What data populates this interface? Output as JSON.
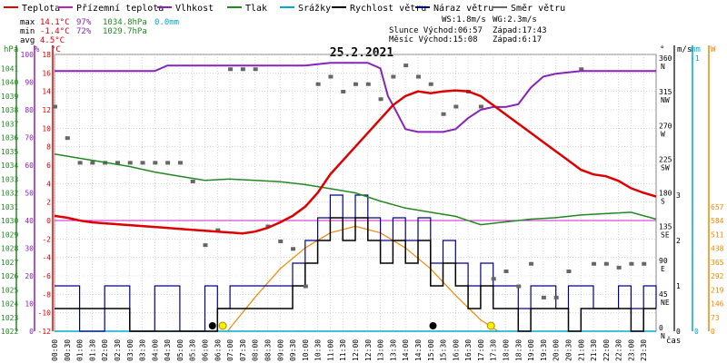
{
  "legend": [
    {
      "label": "Teplota",
      "color": "#dd0000"
    },
    {
      "label": "Přízemní teplota",
      "color": "#bb22bb"
    },
    {
      "label": "Vlhkost",
      "color": "#8822bb"
    },
    {
      "label": "Tlak",
      "color": "#228822"
    },
    {
      "label": "Srážky",
      "color": "#00aacc"
    },
    {
      "label": "Rychlost větru",
      "color": "#000000"
    },
    {
      "label": "Náraz větru",
      "color": "#000088"
    },
    {
      "label": "Směr větru",
      "color": "#666666"
    }
  ],
  "stats": {
    "max": {
      "label": "max",
      "temp": "14.1°C",
      "hum": "97%",
      "press": "1034.8hPa",
      "rain": "0.0mm"
    },
    "min": {
      "label": "min",
      "temp": "-1.4°C",
      "hum": "72%",
      "press": "1029.7hPa"
    },
    "avg": {
      "label": "avg",
      "temp": "4.5°C"
    }
  },
  "wind_info": {
    "ws": "WS:1.8m/s",
    "wg": "WG:2.3m/s"
  },
  "sun": {
    "rise": "Slunce Východ:06:57",
    "set": "Západ:17:43"
  },
  "moon": {
    "rise": "Měsíc Východ:15:08",
    "set": "Západ:6:17"
  },
  "date": "25.2.2021",
  "colors": {
    "temp": "#dd0000",
    "humidity": "#8822bb",
    "pressure": "#228822",
    "rain": "#00aacc",
    "wind": "#000000",
    "gust": "#000088",
    "dir": "#666666",
    "sun": "#ee8800",
    "zero": "#cc22cc"
  },
  "chart_data": {
    "type": "line",
    "title": "25.2.2021",
    "xlabel": "čas",
    "x_ticks": [
      "00:00",
      "00:30",
      "01:00",
      "01:30",
      "02:00",
      "02:30",
      "03:00",
      "03:30",
      "04:00",
      "04:30",
      "05:00",
      "05:30",
      "06:00",
      "06:30",
      "07:00",
      "07:30",
      "08:00",
      "08:30",
      "09:00",
      "09:30",
      "10:00",
      "10:30",
      "11:00",
      "11:30",
      "12:00",
      "12:30",
      "13:00",
      "13:30",
      "14:00",
      "14:30",
      "15:00",
      "15:30",
      "16:00",
      "16:30",
      "17:00",
      "17:30",
      "18:00",
      "18:30",
      "19:00",
      "19:30",
      "20:00",
      "20:30",
      "21:00",
      "21:30",
      "22:00",
      "22:30",
      "23:00",
      "23:30"
    ],
    "axes": {
      "pressure": {
        "unit": "hPa",
        "range": [
          1022,
          1042
        ],
        "ticks": [
          "1022",
          "1023",
          "1024",
          "1025",
          "1026",
          "1027",
          "1028",
          "1029",
          "1030",
          "1031",
          "1032",
          "1033",
          "1034",
          "1035",
          "1036",
          "1037",
          "1038",
          "1039",
          "1040",
          "1041"
        ]
      },
      "humidity": {
        "unit": "%",
        "range": [
          0,
          100
        ],
        "ticks": [
          "0",
          "10",
          "20",
          "30",
          "40",
          "50",
          "60",
          "70",
          "80",
          "90",
          "100"
        ]
      },
      "temperature": {
        "unit": "°C",
        "range": [
          -12,
          18
        ],
        "ticks": [
          "-12",
          "-10",
          "-8",
          "-6",
          "-4",
          "-2",
          "0",
          "2",
          "4",
          "6",
          "8",
          "10",
          "12",
          "14",
          "16",
          "18"
        ]
      },
      "direction": {
        "unit": "°",
        "ticks": [
          {
            "v": "0",
            "s": "N"
          },
          {
            "v": "45",
            "s": "NE"
          },
          {
            "v": "90",
            "s": "E"
          },
          {
            "v": "135",
            "s": "SE"
          },
          {
            "v": "180",
            "s": "S"
          },
          {
            "v": "225",
            "s": "SW"
          },
          {
            "v": "270",
            "s": "W"
          },
          {
            "v": "315",
            "s": "NW"
          },
          {
            "v": "360",
            "s": "N"
          }
        ]
      },
      "wind": {
        "unit": "m/s",
        "ticks": [
          "0",
          "1",
          "2",
          "3"
        ]
      },
      "rain": {
        "unit": "mm",
        "ticks": [
          "0",
          "-1"
        ]
      },
      "solar": {
        "unit": "W",
        "ticks": [
          "0",
          "73",
          "146",
          "219",
          "292",
          "365",
          "438",
          "511",
          "584",
          "657"
        ]
      }
    },
    "series": [
      {
        "name": "Teplota",
        "axis": "temperature",
        "x": [
          0,
          0.5,
          1,
          1.5,
          2,
          2.5,
          3,
          3.5,
          4,
          4.5,
          5,
          5.5,
          6,
          6.5,
          7,
          7.5,
          8,
          8.5,
          9,
          9.5,
          10,
          10.5,
          11,
          11.5,
          12,
          12.5,
          13,
          13.5,
          14,
          14.5,
          15,
          15.5,
          16,
          16.5,
          17,
          17.5,
          18,
          18.5,
          19,
          19.5,
          20,
          20.5,
          21,
          21.5,
          22,
          22.5,
          23,
          23.5,
          24
        ],
        "y": [
          0.5,
          0.3,
          0,
          -0.2,
          -0.3,
          -0.4,
          -0.5,
          -0.6,
          -0.7,
          -0.8,
          -0.9,
          -1,
          -1.1,
          -1.2,
          -1.3,
          -1.4,
          -1.2,
          -0.8,
          -0.2,
          0.5,
          1.5,
          3,
          5,
          6.5,
          8,
          9.5,
          11,
          12.5,
          13.5,
          14,
          13.8,
          14,
          14.1,
          14,
          13.5,
          12.5,
          11.5,
          10.5,
          9.5,
          8.5,
          7.5,
          6.5,
          5.5,
          5,
          4.8,
          4.3,
          3.5,
          3,
          2.6
        ]
      },
      {
        "name": "Vlhkost",
        "axis": "humidity",
        "x": [
          0,
          1,
          2,
          3,
          4,
          4.5,
          5,
          6,
          7,
          8,
          9,
          10,
          11,
          12,
          12.5,
          13,
          13.3,
          13.6,
          14,
          14.5,
          15,
          15.5,
          16,
          16.5,
          17,
          17.5,
          18,
          18.5,
          19,
          19.5,
          20,
          21,
          22,
          23,
          24
        ],
        "y": [
          94,
          94,
          94,
          94,
          94,
          96,
          96,
          96,
          96,
          96,
          96,
          96,
          97,
          97,
          97,
          95,
          85,
          80,
          73,
          72,
          72,
          72,
          73,
          77,
          80,
          81,
          81,
          82,
          88,
          92,
          93,
          94,
          94,
          94,
          94
        ]
      },
      {
        "name": "Tlak",
        "axis": "pressure",
        "x": [
          0,
          1,
          2,
          3,
          4,
          5,
          6,
          7,
          8,
          9,
          10,
          11,
          12,
          13,
          14,
          15,
          16,
          17,
          18,
          19,
          20,
          21,
          22,
          23,
          24
        ],
        "y": [
          1034.8,
          1034.5,
          1034.2,
          1033.9,
          1033.5,
          1033.2,
          1032.9,
          1033,
          1032.9,
          1032.8,
          1032.6,
          1032.3,
          1032.0,
          1031.4,
          1030.9,
          1030.6,
          1030.3,
          1029.7,
          1029.9,
          1030.1,
          1030.2,
          1030.4,
          1030.5,
          1030.6,
          1030.1
        ]
      },
      {
        "name": "Srážky",
        "axis": "rain",
        "x": [
          0,
          24
        ],
        "y": [
          0,
          0
        ]
      },
      {
        "name": "Rychlost větru",
        "axis": "wind",
        "x": [
          0,
          1,
          2,
          3,
          4,
          5,
          6,
          6.5,
          7,
          8,
          9,
          9.5,
          10,
          10.5,
          11,
          11.5,
          12,
          12.5,
          13,
          13.5,
          14,
          14.5,
          15,
          15.5,
          16,
          16.5,
          17,
          17.5,
          18,
          18.5,
          19,
          19.5,
          20,
          20.5,
          21,
          21.5,
          22,
          22.5,
          23,
          23.5,
          24
        ],
        "y": [
          0.5,
          0.5,
          0.5,
          0,
          0,
          0,
          0,
          0.5,
          0.5,
          0.5,
          0.5,
          1,
          1.5,
          2,
          2.5,
          2,
          2.5,
          2,
          1.5,
          2,
          1.5,
          2,
          1,
          1.5,
          1,
          0.5,
          1,
          0.5,
          0.5,
          0,
          0.5,
          0.5,
          0.5,
          0,
          0.5,
          0.5,
          0.5,
          0.5,
          0,
          0.5,
          0.5
        ]
      },
      {
        "name": "Náraz větru",
        "axis": "wind",
        "x": [
          0,
          1,
          2,
          3,
          4,
          5,
          6,
          6.5,
          7,
          8,
          9,
          9.5,
          10,
          10.5,
          11,
          11.5,
          12,
          12.5,
          13,
          13.5,
          14,
          14.5,
          15,
          15.5,
          16,
          16.5,
          17,
          17.5,
          18,
          18.5,
          19,
          19.5,
          20,
          20.5,
          21,
          21.5,
          22,
          22.5,
          23,
          23.5,
          24
        ],
        "y": [
          1,
          0,
          1,
          0,
          1,
          0,
          1,
          0.5,
          1,
          1,
          1,
          1.5,
          2,
          2.5,
          3,
          2.5,
          3,
          2.5,
          2,
          2.5,
          2,
          2.5,
          1.5,
          2,
          1.5,
          1,
          1.5,
          1,
          1,
          0.5,
          1,
          1,
          0.5,
          1,
          1,
          0.5,
          0.5,
          1,
          0.5,
          1,
          0.5
        ]
      },
      {
        "name": "Směr větru",
        "axis": "direction",
        "x": [
          0,
          0.5,
          1,
          1.5,
          2,
          2.5,
          3,
          3.5,
          4,
          4.5,
          5,
          5.5,
          6,
          6.5,
          7,
          7.5,
          8,
          8.5,
          9,
          9.5,
          10,
          10.5,
          11,
          11.5,
          12,
          12.5,
          13,
          13.5,
          14,
          14.5,
          15,
          15.5,
          16,
          16.5,
          17,
          17.5,
          18,
          18.5,
          19,
          19.5,
          20,
          20.5,
          21,
          21.5,
          22,
          22.5,
          23,
          23.5
        ],
        "y": [
          300,
          258,
          225,
          225,
          225,
          225,
          225,
          225,
          225,
          225,
          225,
          200,
          115,
          135,
          350,
          350,
          350,
          140,
          120,
          110,
          60,
          330,
          340,
          320,
          330,
          330,
          310,
          340,
          355,
          340,
          330,
          290,
          300,
          320,
          300,
          70,
          80,
          60,
          90,
          45,
          45,
          80,
          350,
          90,
          90,
          85,
          90,
          90
        ]
      },
      {
        "name": "Solar",
        "axis": "solar",
        "x": [
          6.9,
          8,
          9,
          10,
          11,
          12,
          13,
          14,
          15,
          16,
          17,
          17.7
        ],
        "y": [
          0,
          180,
          330,
          440,
          520,
          555,
          520,
          440,
          330,
          190,
          60,
          0
        ]
      }
    ]
  }
}
